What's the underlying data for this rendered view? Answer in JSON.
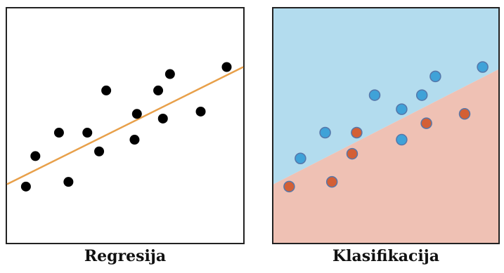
{
  "captions": {
    "regression": "Regresija",
    "classification": "Klasifikacija"
  },
  "colors": {
    "frame": "#222222",
    "regression_line": "#e8a04a",
    "point_black": "#000000",
    "region_top": "#b3dcee",
    "region_bottom": "#efc1b4",
    "point_blue": "#3fa2d8",
    "point_red": "#d35f35",
    "point_outline": "#5577aa"
  },
  "chart_data": [
    {
      "type": "scatter",
      "title": "",
      "xlabel": "",
      "ylabel": "",
      "xlim": [
        0,
        100
      ],
      "ylim": [
        0,
        100
      ],
      "grid": false,
      "series": [
        {
          "points": [
            [
              8,
              24
            ],
            [
              12,
              37
            ],
            [
              22,
              47
            ],
            [
              26,
              26
            ],
            [
              34,
              47
            ],
            [
              39,
              39
            ],
            [
              42,
              65
            ],
            [
              54,
              44
            ],
            [
              55,
              55
            ],
            [
              64,
              65
            ],
            [
              66,
              53
            ],
            [
              69,
              72
            ],
            [
              82,
              56
            ],
            [
              93,
              75
            ]
          ]
        }
      ],
      "fit_line": [
        [
          0,
          25
        ],
        [
          100,
          75
        ]
      ]
    },
    {
      "type": "scatter",
      "title": "",
      "xlabel": "",
      "ylabel": "",
      "xlim": [
        0,
        100
      ],
      "ylim": [
        0,
        100
      ],
      "grid": false,
      "decision_boundary": [
        [
          0,
          25
        ],
        [
          100,
          74
        ]
      ],
      "series": [
        {
          "name": "",
          "color": "blue",
          "points": [
            [
              12,
              36
            ],
            [
              23,
              47
            ],
            [
              45,
              63
            ],
            [
              57,
              57
            ],
            [
              57,
              44
            ],
            [
              66,
              63
            ],
            [
              72,
              71
            ],
            [
              93,
              75
            ]
          ]
        },
        {
          "name": "",
          "color": "red",
          "points": [
            [
              7,
              24
            ],
            [
              26,
              26
            ],
            [
              35,
              38
            ],
            [
              37,
              47
            ],
            [
              68,
              51
            ],
            [
              85,
              55
            ]
          ]
        }
      ]
    }
  ]
}
